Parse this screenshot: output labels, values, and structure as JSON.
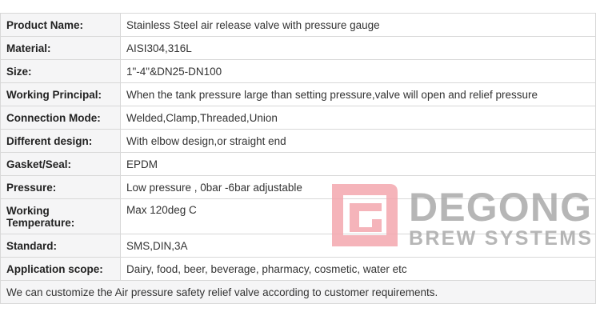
{
  "rows": [
    {
      "label": "Product Name:",
      "value": "Stainless Steel air release valve with pressure gauge"
    },
    {
      "label": "Material:",
      "value": "AISI304,316L"
    },
    {
      "label": "Size:",
      "value": "1\"-4\"&DN25-DN100"
    },
    {
      "label": "Working Principal:",
      "value": "When the tank pressure large than setting pressure,valve will open and relief pressure"
    },
    {
      "label": "Connection Mode:",
      "value": "Welded,Clamp,Threaded,Union"
    },
    {
      "label": "Different design:",
      "value": "With elbow design,or straight end"
    },
    {
      "label": "Gasket/Seal:",
      "value": "EPDM"
    },
    {
      "label": "Pressure:",
      "value": "Low pressure , 0bar -6bar adjustable"
    },
    {
      "label": "Working Temperature:",
      "value": "Max 120deg C"
    },
    {
      "label": "Standard:",
      "value": "SMS,DIN,3A"
    },
    {
      "label": "Application scope:",
      "value": "Dairy, food, beer, beverage, pharmacy, cosmetic, water etc"
    }
  ],
  "footer": "We can customize the Air pressure safety relief valve according to customer requirements.",
  "watermark": {
    "line1": "DEGONG",
    "line2": "BREW SYSTEMS",
    "colors": {
      "mark": "#f4a7ae",
      "text": "#aaaaaa"
    }
  }
}
